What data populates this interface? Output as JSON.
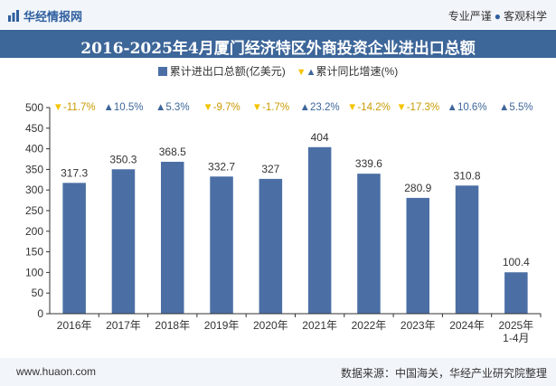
{
  "header": {
    "logo_text": "华经情报网",
    "slogan_left": "专业严谨",
    "slogan_dot": "●",
    "slogan_right": "客观科学"
  },
  "footer": {
    "website": "www.huaon.com",
    "source": "数据来源：中国海关，华经产业研究院整理"
  },
  "colors": {
    "bar": "#4b6fa5",
    "title_bg": "#3d6699",
    "up": "#3d6699",
    "down": "#f5c400"
  },
  "chart_data": {
    "type": "bar",
    "title": "2016-2025年4月厦门经济特区外商投资企业进出口总额",
    "categories": [
      "2016年",
      "2017年",
      "2018年",
      "2019年",
      "2020年",
      "2021年",
      "2022年",
      "2023年",
      "2024年",
      "2025年\n1-4月"
    ],
    "series": [
      {
        "name": "累计进出口总额(亿美元)",
        "values": [
          317.3,
          350.3,
          368.5,
          332.7,
          327,
          404,
          339.6,
          280.9,
          310.8,
          100.4
        ]
      },
      {
        "name": "累计同比增速(%)",
        "values": [
          -11.7,
          10.5,
          5.3,
          -9.7,
          -1.7,
          23.2,
          -14.2,
          -17.3,
          10.6,
          5.5
        ]
      }
    ],
    "growth_labels": [
      "-11.7%",
      "10.5%",
      "5.3%",
      "-9.7%",
      "-1.7%",
      "23.2%",
      "-14.2%",
      "-17.3%",
      "10.6%",
      "5.5%"
    ],
    "ylim": [
      0,
      500
    ],
    "yticks": [
      0,
      50,
      100,
      150,
      200,
      250,
      300,
      350,
      400,
      450,
      500
    ],
    "grid": false,
    "legend_position": "top-center"
  }
}
